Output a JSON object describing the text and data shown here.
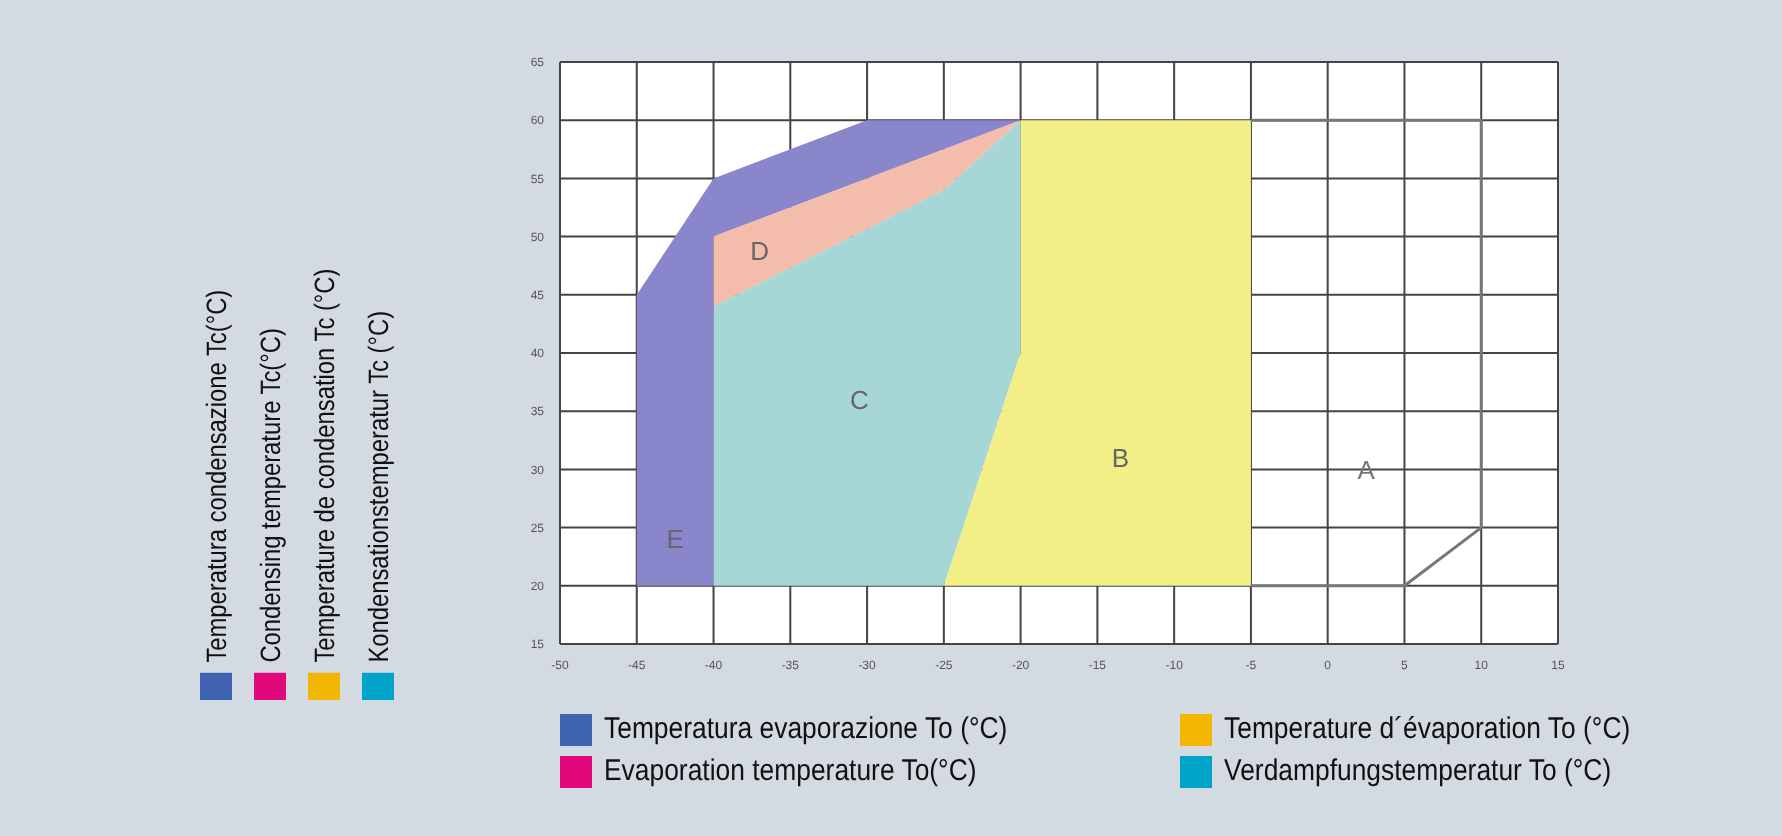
{
  "chart_data": {
    "type": "area",
    "xlabel": "Temperatura evaporazione To (°C)\nEvaporation temperature To(°C)\nTemperature d´évaporation To (°C)\nVerdampfungstemperatur To (°C)",
    "ylabel": "Temperatura condensazione Tc(°C)\nCondensing temperature Tc(°C)\nTemperature de condensation Tc (°C)\nKondensationstemperatur Tc (°C)",
    "series": [
      {
        "name": "E",
        "color": "#8a86cc",
        "x": [
          -45,
          -45,
          -40,
          -30,
          -20,
          -30,
          -40,
          -40,
          -45
        ],
        "values": [
          20,
          45,
          55,
          60,
          60,
          55,
          50,
          20,
          20
        ]
      },
      {
        "name": "D",
        "color": "#f4bcaa",
        "x": [
          -40,
          -20,
          -25,
          -40,
          -40
        ],
        "values": [
          50,
          60,
          54,
          44,
          50
        ]
      },
      {
        "name": "C",
        "color": "#a6d6d6",
        "x": [
          -40,
          -40,
          -25,
          -20,
          -20,
          -25,
          -40
        ],
        "values": [
          20,
          44,
          54,
          60,
          40,
          20,
          20
        ]
      },
      {
        "name": "B",
        "color": "#f1ef86",
        "x": [
          -25,
          -20,
          -20,
          -5,
          -5,
          -25
        ],
        "values": [
          20,
          40,
          60,
          60,
          20,
          20
        ]
      },
      {
        "name": "A",
        "type": "line",
        "color": "#777777",
        "x": [
          -5,
          5,
          10,
          10,
          -5
        ],
        "values": [
          20,
          20,
          25,
          60,
          60
        ]
      }
    ],
    "xlim": [
      -50,
      15
    ],
    "xticks": [
      -50,
      -45,
      -40,
      -35,
      -30,
      -25,
      -20,
      -15,
      -10,
      -5,
      0,
      5,
      10,
      15
    ],
    "ylim": [
      15,
      65
    ],
    "yticks": [
      15,
      20,
      25,
      30,
      35,
      40,
      45,
      50,
      55,
      60,
      65
    ],
    "grid": true
  }
}
